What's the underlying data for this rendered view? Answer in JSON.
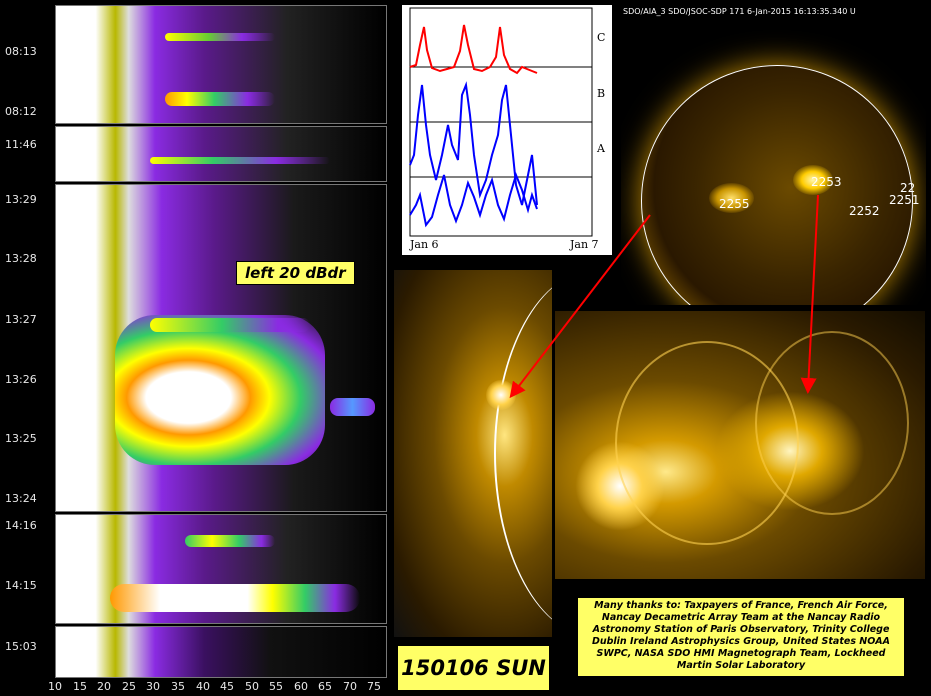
{
  "spectrogram": {
    "time_labels": [
      "08:13",
      "08:12",
      "11:46",
      "13:29",
      "13:28",
      "13:27",
      "13:26",
      "13:25",
      "13:24",
      "14:16",
      "14:15",
      "15:03"
    ],
    "freq_labels": [
      "10",
      "15",
      "20",
      "25",
      "30",
      "35",
      "40",
      "45",
      "50",
      "55",
      "60",
      "65",
      "70",
      "75"
    ],
    "polarization_label": "left 20 dBdr"
  },
  "timeseries": {
    "channel_labels": [
      "C",
      "B",
      "A"
    ],
    "x_labels": [
      "Jan 6",
      "Jan 7"
    ],
    "colors": {
      "C": "#ff0000",
      "B": "#0000ff",
      "A": "#0000ff"
    }
  },
  "sdo": {
    "header": "SDO/AIA_3 SDO/JSOC-SDP 171   6-Jan-2015 16:13:35.340 U",
    "regions": [
      "2253",
      "2255",
      "2252",
      "2251",
      "22"
    ]
  },
  "date_label": "150106 SUN",
  "credits": "Many thanks to: Taxpayers of France, French Air Force, Nancay Decametric Array Team at the Nancay Radio Astronomy Station of Paris Observatory, Trinity College Dublin Ireland Astrophysics Group, United States NOAA SWPC, NASA SDO HMI Magnetograph Team, Lockheed Martin Solar Laboratory"
}
